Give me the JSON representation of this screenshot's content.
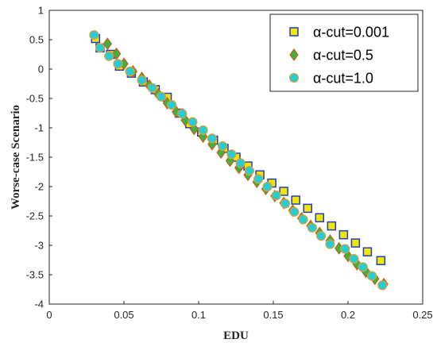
{
  "chart_data": {
    "type": "scatter",
    "xlabel": "EDU",
    "ylabel": "Worse-case Scenario",
    "xlim": [
      0,
      0.25
    ],
    "ylim": [
      -4,
      1
    ],
    "xticks": [
      "0",
      "0.05",
      "0.1",
      "0.15",
      "0.2",
      "0.25"
    ],
    "yticks": [
      "1",
      "0.5",
      "0",
      "-0.5",
      "-1",
      "-1.5",
      "-2",
      "-2.5",
      "-3",
      "-3.5",
      "-4"
    ],
    "grid": false,
    "legend_position": "top-right",
    "series": [
      {
        "name": "α-cut=0.001",
        "marker": "square",
        "fill": "#f2e600",
        "edge": "#1f3fbf",
        "x": [
          0.031,
          0.034,
          0.041,
          0.047,
          0.055,
          0.063,
          0.071,
          0.079,
          0.087,
          0.094,
          0.102,
          0.11,
          0.117,
          0.125,
          0.133,
          0.141,
          0.149,
          0.157,
          0.165,
          0.173,
          0.181,
          0.189,
          0.197,
          0.205,
          0.213,
          0.222
        ],
        "y": [
          0.52,
          0.36,
          0.25,
          0.05,
          -0.07,
          -0.22,
          -0.35,
          -0.48,
          -0.75,
          -0.93,
          -1.07,
          -1.21,
          -1.35,
          -1.5,
          -1.65,
          -1.8,
          -1.94,
          -2.08,
          -2.23,
          -2.37,
          -2.53,
          -2.67,
          -2.82,
          -2.96,
          -3.11,
          -3.26
        ]
      },
      {
        "name": "α-cut=0.5",
        "marker": "diamond",
        "fill": "#3cb33c",
        "edge": "#d05a1e",
        "x": [
          0.039,
          0.045,
          0.05,
          0.056,
          0.062,
          0.067,
          0.073,
          0.079,
          0.085,
          0.091,
          0.097,
          0.103,
          0.109,
          0.115,
          0.121,
          0.127,
          0.133,
          0.139,
          0.145,
          0.151,
          0.157,
          0.163,
          0.169,
          0.175,
          0.181,
          0.188,
          0.194,
          0.2,
          0.206,
          0.212,
          0.218,
          0.224
        ],
        "y": [
          0.43,
          0.26,
          0.09,
          -0.04,
          -0.15,
          -0.28,
          -0.43,
          -0.58,
          -0.73,
          -0.87,
          -1.02,
          -1.15,
          -1.28,
          -1.42,
          -1.56,
          -1.68,
          -1.8,
          -1.92,
          -2.04,
          -2.16,
          -2.28,
          -2.41,
          -2.54,
          -2.67,
          -2.79,
          -2.92,
          -3.05,
          -3.18,
          -3.32,
          -3.45,
          -3.57,
          -3.66
        ]
      },
      {
        "name": "α-cut=1.0",
        "marker": "circle",
        "fill": "#27cdd4",
        "edge": "#e0a030",
        "x": [
          0.03,
          0.034,
          0.04,
          0.046,
          0.054,
          0.062,
          0.069,
          0.075,
          0.082,
          0.089,
          0.096,
          0.103,
          0.109,
          0.116,
          0.122,
          0.128,
          0.134,
          0.14,
          0.146,
          0.152,
          0.158,
          0.164,
          0.17,
          0.176,
          0.182,
          0.188,
          0.198,
          0.204,
          0.21,
          0.216,
          0.223
        ],
        "y": [
          0.58,
          0.36,
          0.22,
          0.09,
          -0.04,
          -0.19,
          -0.32,
          -0.47,
          -0.61,
          -0.76,
          -0.9,
          -1.04,
          -1.18,
          -1.31,
          -1.45,
          -1.6,
          -1.73,
          -1.87,
          -2.0,
          -2.15,
          -2.29,
          -2.43,
          -2.56,
          -2.7,
          -2.84,
          -2.98,
          -3.06,
          -3.23,
          -3.37,
          -3.52,
          -3.68
        ]
      }
    ]
  }
}
